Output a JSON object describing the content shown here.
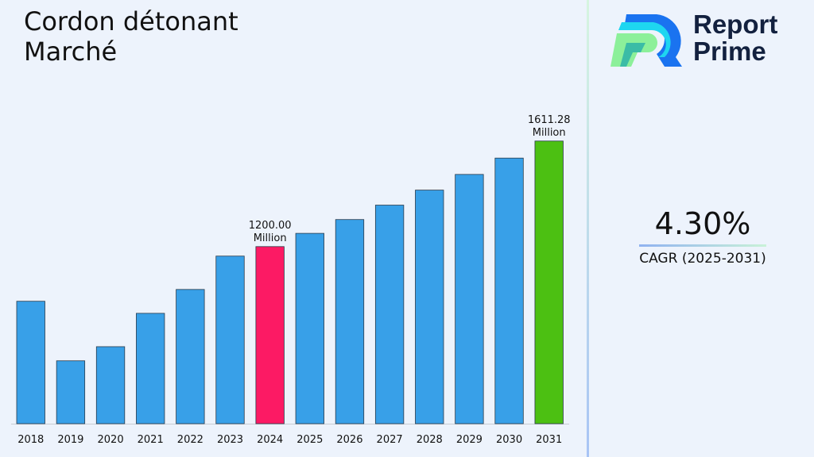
{
  "title_line1": "Cordon détonant",
  "title_line2": "Marché",
  "logo": {
    "line1": "Report",
    "line2": "Prime"
  },
  "cagr": {
    "value": "4.30%",
    "label": "CAGR (2025-2031)"
  },
  "colors": {
    "default_bar": "#38a0e8",
    "highlight_2024": "#fc1a64",
    "highlight_2031": "#4cc012"
  },
  "chart_data": {
    "type": "bar",
    "title": "Cordon détonant Marché",
    "categories": [
      "2018",
      "2019",
      "2020",
      "2021",
      "2022",
      "2023",
      "2024",
      "2025",
      "2026",
      "2027",
      "2028",
      "2029",
      "2030",
      "2031"
    ],
    "values": [
      987,
      755,
      810,
      940,
      1033,
      1163,
      1200.0,
      1251.6,
      1305.4,
      1361.6,
      1420.1,
      1481.2,
      1544.9,
      1611.28
    ],
    "unit": "Million",
    "data_labels": {
      "2024": [
        "1200.00",
        "Million"
      ],
      "2031": [
        "1611.28",
        "Million"
      ]
    },
    "ylim": [
      510,
      1660
    ],
    "grid": false,
    "legend": "none"
  }
}
